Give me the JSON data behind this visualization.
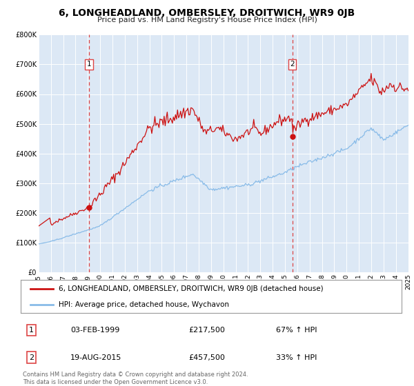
{
  "title": "6, LONGHEADLAND, OMBERSLEY, DROITWICH, WR9 0JB",
  "subtitle": "Price paid vs. HM Land Registry's House Price Index (HPI)",
  "plot_bg_color": "#dce8f5",
  "red_line_label": "6, LONGHEADLAND, OMBERSLEY, DROITWICH, WR9 0JB (detached house)",
  "blue_line_label": "HPI: Average price, detached house, Wychavon",
  "vline1_year": 1999.1,
  "vline2_year": 2015.6,
  "marker1_value": 217500,
  "marker2_value": 457500,
  "ylim": [
    0,
    800000
  ],
  "yticks": [
    0,
    100000,
    200000,
    300000,
    400000,
    500000,
    600000,
    700000,
    800000
  ],
  "ytick_labels": [
    "£0",
    "£100K",
    "£200K",
    "£300K",
    "£400K",
    "£500K",
    "£600K",
    "£700K",
    "£800K"
  ],
  "xlim_start": 1995,
  "xlim_end": 2025,
  "footer": "Contains HM Land Registry data © Crown copyright and database right 2024.\nThis data is licensed under the Open Government Licence v3.0.",
  "red_color": "#cc1111",
  "blue_color": "#88bbe8",
  "vline_color": "#dd4444",
  "grid_color": "#ffffff",
  "title_fontsize": 10,
  "subtitle_fontsize": 8,
  "tick_fontsize": 7,
  "legend_fontsize": 7.5,
  "table_fontsize": 8,
  "footer_fontsize": 6,
  "row1_date": "03-FEB-1999",
  "row1_price": "£217,500",
  "row1_hpi": "67% ↑ HPI",
  "row2_date": "19-AUG-2015",
  "row2_price": "£457,500",
  "row2_hpi": "33% ↑ HPI"
}
